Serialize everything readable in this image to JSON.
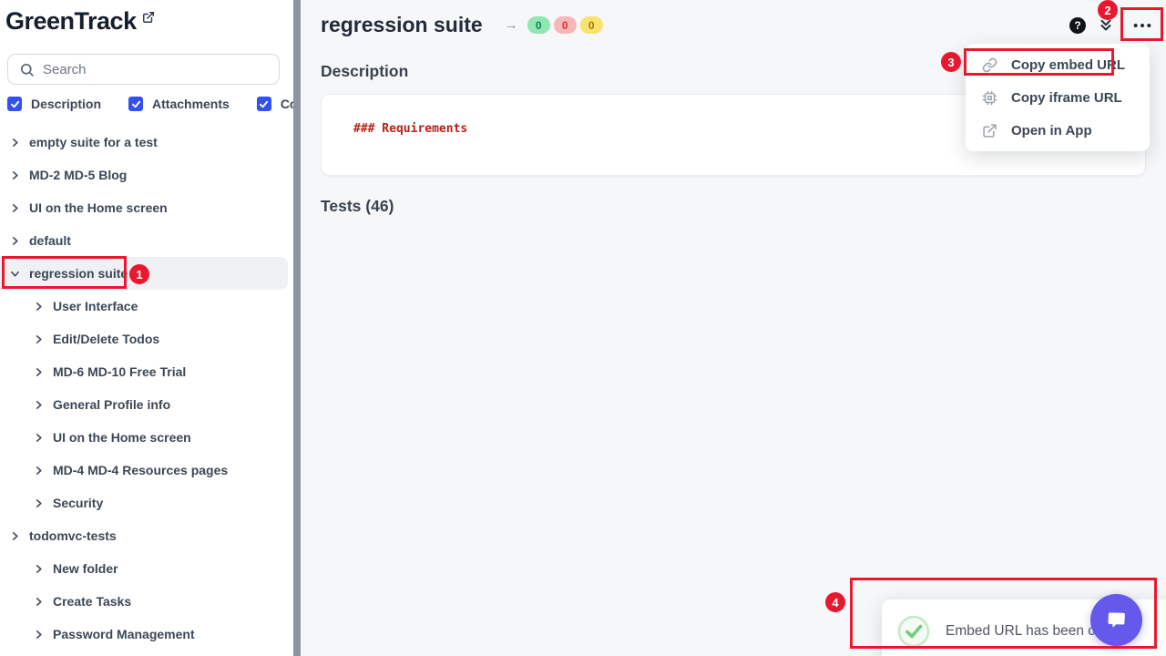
{
  "app": {
    "name": "GreenTrack"
  },
  "sidebar": {
    "search": {
      "placeholder": "Search"
    },
    "filters": [
      {
        "label": "Description",
        "checked": true
      },
      {
        "label": "Attachments",
        "checked": true
      },
      {
        "label": "Code",
        "checked": true
      }
    ],
    "tree": [
      {
        "label": "empty suite for a test",
        "level": 0,
        "expanded": false,
        "selected": false
      },
      {
        "label": "MD-2 MD-5 Blog",
        "level": 0,
        "expanded": false,
        "selected": false
      },
      {
        "label": "UI on the Home screen",
        "level": 0,
        "expanded": false,
        "selected": false
      },
      {
        "label": "default",
        "level": 0,
        "expanded": false,
        "selected": false
      },
      {
        "label": "regression suite",
        "level": 0,
        "expanded": true,
        "selected": true
      },
      {
        "label": "User Interface",
        "level": 1,
        "expanded": false,
        "selected": false
      },
      {
        "label": "Edit/Delete Todos",
        "level": 1,
        "expanded": false,
        "selected": false
      },
      {
        "label": "MD-6 MD-10 Free Trial",
        "level": 1,
        "expanded": false,
        "selected": false
      },
      {
        "label": "General Profile info",
        "level": 1,
        "expanded": false,
        "selected": false
      },
      {
        "label": "UI on the Home screen",
        "level": 1,
        "expanded": false,
        "selected": false
      },
      {
        "label": "MD-4 MD-4 Resources pages",
        "level": 1,
        "expanded": false,
        "selected": false
      },
      {
        "label": "Security",
        "level": 1,
        "expanded": false,
        "selected": false
      },
      {
        "label": "todomvc-tests",
        "level": 0,
        "expanded": false,
        "selected": false
      },
      {
        "label": "New folder",
        "level": 1,
        "expanded": false,
        "selected": false
      },
      {
        "label": "Create Tasks",
        "level": 1,
        "expanded": false,
        "selected": false
      },
      {
        "label": "Password Management",
        "level": 1,
        "expanded": false,
        "selected": false
      }
    ]
  },
  "main": {
    "title": "regression suite",
    "arrow": "→",
    "counts": [
      {
        "name": "passed",
        "value": "0",
        "bg": "#8fe7b1",
        "fg": "#1a7f4b"
      },
      {
        "name": "failed",
        "value": "0",
        "bg": "#f8b6b6",
        "fg": "#d93030"
      },
      {
        "name": "skipped",
        "value": "0",
        "bg": "#fbe26e",
        "fg": "#9c7c09"
      }
    ],
    "description": {
      "heading": "Description",
      "code": "### Requirements"
    },
    "tests_heading": "Tests (46)",
    "help_glyph": "?"
  },
  "menu": {
    "items": [
      {
        "label": "Copy embed URL",
        "icon": "link"
      },
      {
        "label": "Copy iframe URL",
        "icon": "iframe"
      },
      {
        "label": "Open in App",
        "icon": "external-link"
      }
    ]
  },
  "toast": {
    "message": "Embed URL has been copied"
  },
  "annotations": [
    {
      "number": "1"
    },
    {
      "number": "2"
    },
    {
      "number": "3"
    },
    {
      "number": "4"
    }
  ],
  "colors": {
    "annotation_red": "#e8192e",
    "accent_blue": "#3451f0",
    "chat_purple": "#6459ea",
    "code_red": "#b42318",
    "scrollbar_gray": "#8d95a3"
  }
}
